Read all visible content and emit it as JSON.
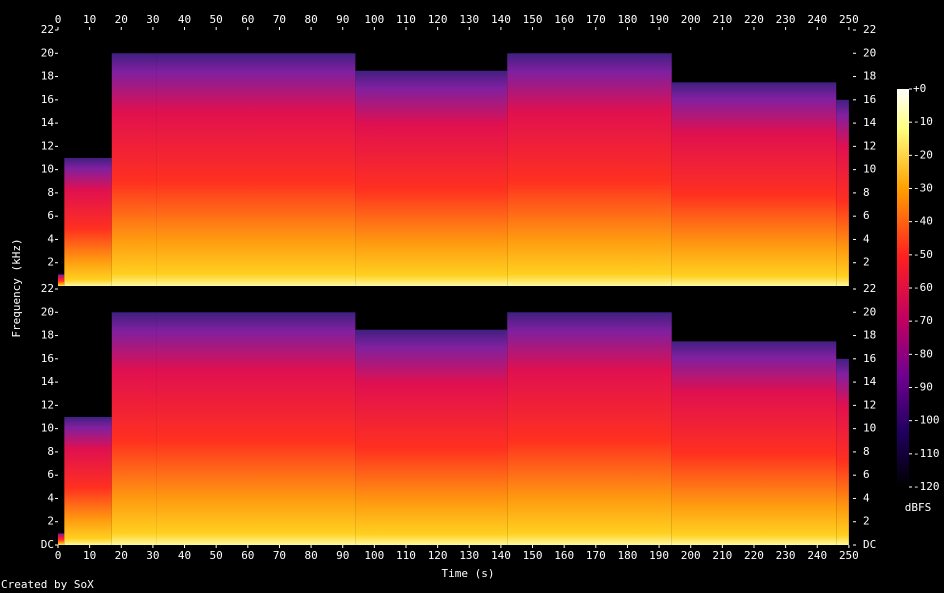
{
  "chart_data": {
    "type": "spectrogram",
    "x_label": "Time (s)",
    "y_label": "Frequency (kHz)",
    "xlim": [
      0,
      251.3
    ],
    "xticks": [
      0,
      10,
      20,
      30,
      40,
      50,
      60,
      70,
      80,
      90,
      100,
      110,
      120,
      130,
      140,
      150,
      160,
      170,
      180,
      190,
      200,
      210,
      220,
      230,
      240,
      250
    ],
    "channels": [
      {
        "ylim": [
          0,
          22
        ],
        "yticks": [
          2,
          4,
          6,
          8,
          10,
          12,
          14,
          16,
          18,
          20,
          22
        ],
        "segments": [
          {
            "start": 0,
            "end": 2,
            "top": 1
          },
          {
            "start": 2,
            "end": 17,
            "top": 11
          },
          {
            "start": 17,
            "end": 31,
            "top": 20
          },
          {
            "start": 31,
            "end": 94,
            "top": 20
          },
          {
            "start": 94,
            "end": 142,
            "top": 18.5
          },
          {
            "start": 142,
            "end": 194,
            "top": 20
          },
          {
            "start": 194,
            "end": 246,
            "top": 17.5
          },
          {
            "start": 246,
            "end": 250,
            "top": 16
          }
        ]
      },
      {
        "ylim": [
          0,
          22
        ],
        "yticks": [
          {
            "value": 0,
            "label": "DC"
          },
          2,
          4,
          6,
          8,
          10,
          12,
          14,
          16,
          18,
          20,
          22
        ],
        "segments": [
          {
            "start": 0,
            "end": 2,
            "top": 1
          },
          {
            "start": 2,
            "end": 17,
            "top": 11
          },
          {
            "start": 17,
            "end": 31,
            "top": 20
          },
          {
            "start": 31,
            "end": 94,
            "top": 20
          },
          {
            "start": 94,
            "end": 142,
            "top": 18.5
          },
          {
            "start": 142,
            "end": 194,
            "top": 20
          },
          {
            "start": 194,
            "end": 246,
            "top": 17.5
          },
          {
            "start": 246,
            "end": 250,
            "top": 16
          }
        ]
      }
    ],
    "colorbar": {
      "label": "dBFS",
      "lim": [
        -120,
        0
      ],
      "ticks": [
        {
          "value": 0,
          "label": "+0"
        },
        -10,
        -20,
        -30,
        -40,
        -50,
        -60,
        -70,
        -80,
        -90,
        -100,
        -110,
        -120
      ]
    }
  },
  "footer": "Created by SoX"
}
